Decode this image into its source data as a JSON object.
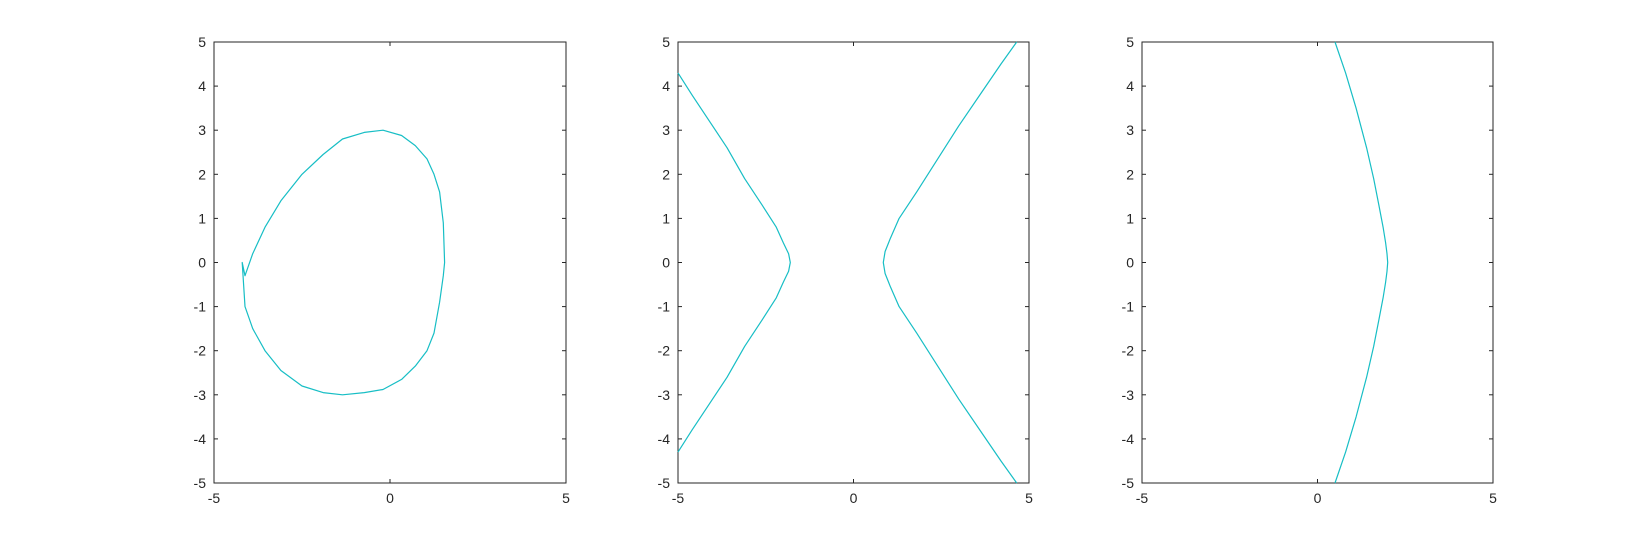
{
  "figure": {
    "background": "#ffffff",
    "axis_color": "#262626",
    "line_color": "#17bec5"
  },
  "chart_data": [
    {
      "type": "line",
      "xlim": [
        -5,
        5
      ],
      "ylim": [
        -5,
        5
      ],
      "xticks": [
        -5,
        0,
        5
      ],
      "yticks": [
        -5,
        -4,
        -3,
        -2,
        -1,
        0,
        1,
        2,
        3,
        4,
        5
      ],
      "xtick_labels": [
        "-5",
        "0",
        "5"
      ],
      "ytick_labels": [
        "-5",
        "-4",
        "-3",
        "-2",
        "-1",
        "0",
        "1",
        "2",
        "3",
        "4",
        "5"
      ],
      "grid": false,
      "series": [
        {
          "color": "#17bec5",
          "x": [
            1.55,
            1.515,
            1.41,
            1.25,
            1.05,
            0.72,
            0.33,
            -0.2,
            -0.73,
            -1.35,
            -1.9,
            -2.5,
            -3.1,
            -3.55,
            -3.9,
            -4.12,
            -4.2,
            -4.12,
            -3.9,
            -3.55,
            -3.1,
            -2.5,
            -1.9,
            -1.35,
            -0.73,
            -0.2,
            0.33,
            0.72,
            1.05,
            1.25,
            1.41,
            1.515,
            1.55
          ],
          "y": [
            0,
            0.9,
            1.6,
            2.0,
            2.35,
            2.65,
            2.88,
            3.0,
            2.95,
            2.8,
            2.45,
            2.0,
            1.4,
            0.8,
            0.2,
            -0.3,
            0,
            -1.0,
            -1.5,
            -2.0,
            -2.45,
            -2.8,
            -2.95,
            -3.0,
            -2.95,
            -2.88,
            -2.65,
            -2.35,
            -2.0,
            -1.6,
            -0.9,
            -0.3,
            0
          ]
        }
      ]
    },
    {
      "type": "line",
      "xlim": [
        -5,
        5
      ],
      "ylim": [
        -5,
        5
      ],
      "xticks": [
        -5,
        0,
        5
      ],
      "yticks": [
        -5,
        -4,
        -3,
        -2,
        -1,
        0,
        1,
        2,
        3,
        4,
        5
      ],
      "xtick_labels": [
        "-5",
        "0",
        "5"
      ],
      "ytick_labels": [
        "-5",
        "-4",
        "-3",
        "-2",
        "-1",
        "0",
        "1",
        "2",
        "3",
        "4",
        "5"
      ],
      "grid": false,
      "series": [
        {
          "color": "#17bec5",
          "x": [
            -5.0,
            -4.6,
            -4.1,
            -3.6,
            -3.1,
            -2.6,
            -2.2,
            -2.0,
            -1.85,
            -1.8,
            -1.85,
            -2.0,
            -2.2,
            -2.6,
            -3.1,
            -3.6,
            -4.1,
            -4.6,
            -5.0
          ],
          "y": [
            4.3,
            3.8,
            3.2,
            2.6,
            1.9,
            1.3,
            0.8,
            0.45,
            0.2,
            0,
            -0.2,
            -0.45,
            -0.8,
            -1.3,
            -1.9,
            -2.6,
            -3.2,
            -3.8,
            -4.3
          ]
        },
        {
          "color": "#17bec5",
          "x": [
            4.65,
            4.2,
            3.6,
            3.0,
            2.4,
            1.8,
            1.3,
            1.05,
            0.9,
            0.85,
            0.9,
            1.05,
            1.3,
            1.8,
            2.4,
            3.0,
            3.6,
            4.2,
            4.65
          ],
          "y": [
            5.0,
            4.5,
            3.8,
            3.1,
            2.35,
            1.6,
            1.0,
            0.55,
            0.25,
            0,
            -0.25,
            -0.55,
            -1.0,
            -1.6,
            -2.35,
            -3.1,
            -3.8,
            -4.5,
            -5.0
          ]
        }
      ]
    },
    {
      "type": "line",
      "xlim": [
        -5,
        5
      ],
      "ylim": [
        -5,
        5
      ],
      "xticks": [
        -5,
        0,
        5
      ],
      "yticks": [
        -5,
        -4,
        -3,
        -2,
        -1,
        0,
        1,
        2,
        3,
        4,
        5
      ],
      "xtick_labels": [
        "-5",
        "0",
        "5"
      ],
      "ytick_labels": [
        "-5",
        "-4",
        "-3",
        "-2",
        "-1",
        "0",
        "1",
        "2",
        "3",
        "4",
        "5"
      ],
      "grid": false,
      "series": [
        {
          "color": "#17bec5",
          "x": [
            0.5,
            0.8,
            1.1,
            1.4,
            1.6,
            1.75,
            1.87,
            1.94,
            1.98,
            2.0,
            1.98,
            1.94,
            1.87,
            1.75,
            1.6,
            1.4,
            1.1,
            0.8,
            0.5
          ],
          "y": [
            5.0,
            4.3,
            3.5,
            2.6,
            1.9,
            1.3,
            0.8,
            0.45,
            0.2,
            0,
            -0.2,
            -0.45,
            -0.8,
            -1.3,
            -1.9,
            -2.6,
            -3.5,
            -4.3,
            -5.0
          ]
        }
      ]
    }
  ]
}
